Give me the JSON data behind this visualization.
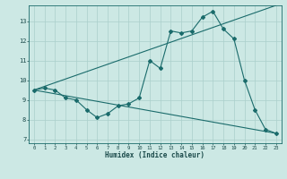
{
  "title": "",
  "xlabel": "Humidex (Indice chaleur)",
  "bg_color": "#cce8e4",
  "line_color": "#1a6b6b",
  "grid_color": "#aacfcb",
  "xlim": [
    -0.5,
    23.5
  ],
  "ylim": [
    6.8,
    13.8
  ],
  "xticks": [
    0,
    1,
    2,
    3,
    4,
    5,
    6,
    7,
    8,
    9,
    10,
    11,
    12,
    13,
    14,
    15,
    16,
    17,
    18,
    19,
    20,
    21,
    22,
    23
  ],
  "yticks": [
    7,
    8,
    9,
    10,
    11,
    12,
    13
  ],
  "series1_x": [
    0,
    1,
    2,
    3,
    4,
    5,
    6,
    7,
    8,
    9,
    10,
    11,
    12,
    13,
    14,
    15,
    16,
    17,
    18,
    19,
    20,
    21,
    22,
    23
  ],
  "series1_y": [
    9.5,
    9.6,
    9.5,
    9.1,
    9.0,
    8.5,
    8.1,
    8.3,
    8.7,
    8.8,
    9.1,
    11.0,
    10.6,
    12.5,
    12.4,
    12.5,
    13.2,
    13.5,
    12.6,
    12.1,
    10.0,
    8.5,
    7.5,
    7.3
  ],
  "series2_x": [
    0,
    23
  ],
  "series2_y": [
    9.5,
    13.8
  ],
  "series3_x": [
    0,
    23
  ],
  "series3_y": [
    9.5,
    7.3
  ]
}
